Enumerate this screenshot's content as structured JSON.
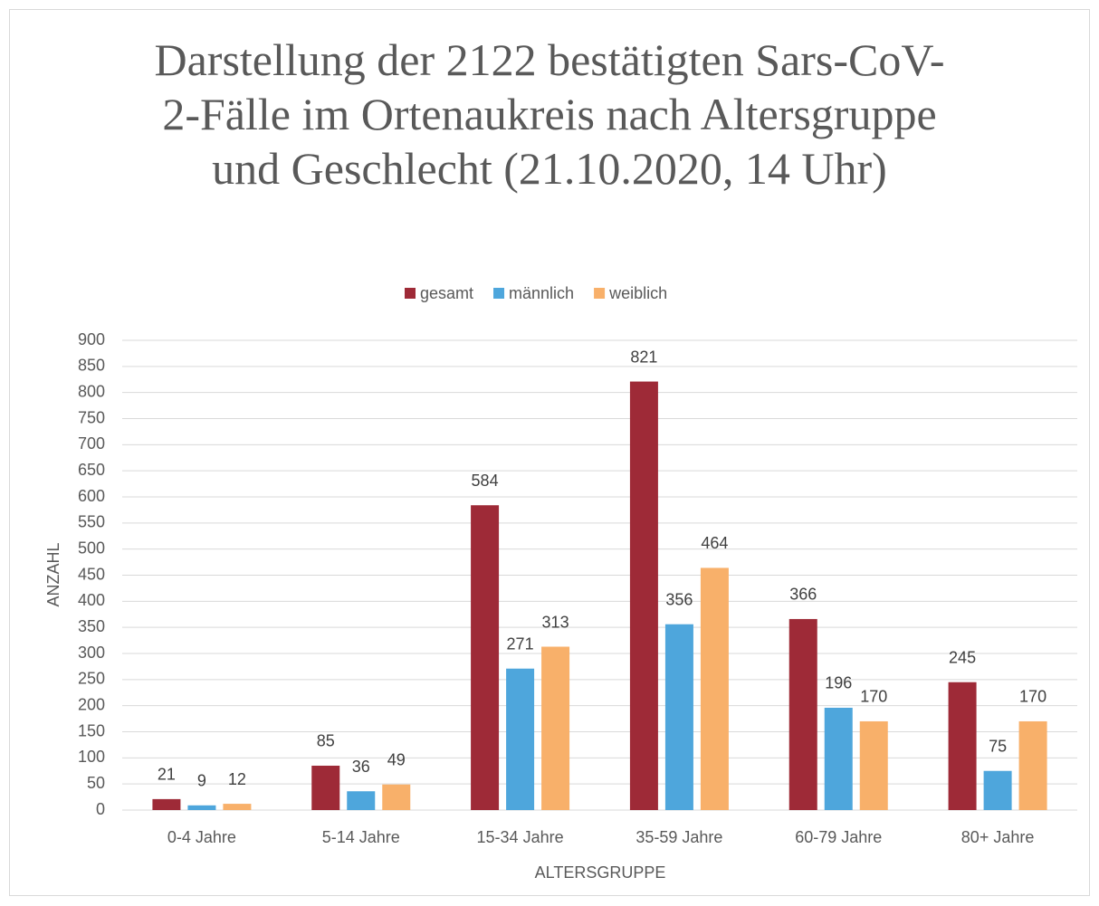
{
  "chart_data": {
    "type": "bar",
    "title": "Darstellung der 2122 bestätigten Sars-CoV-2-Fälle im Ortenaukreis nach Altersgruppe und Geschlecht (21.10.2020, 14 Uhr)",
    "x_label": "ALTERSGRUPPE",
    "y_label": "ANZAHL",
    "categories": [
      "0-4 Jahre",
      "5-14 Jahre",
      "15-34 Jahre",
      "35-59 Jahre",
      "60-79 Jahre",
      "80+ Jahre"
    ],
    "series": [
      {
        "name": "gesamt",
        "color": "#9e2a37",
        "values": [
          21,
          85,
          584,
          821,
          366,
          245
        ]
      },
      {
        "name": "männlich",
        "color": "#4ea6dc",
        "values": [
          9,
          36,
          271,
          356,
          196,
          75
        ]
      },
      {
        "name": "weiblich",
        "color": "#f8b06a",
        "values": [
          12,
          49,
          313,
          464,
          170,
          170
        ]
      }
    ],
    "ylim": [
      0,
      900
    ],
    "yticks": [
      0,
      50,
      100,
      150,
      200,
      250,
      300,
      350,
      400,
      450,
      500,
      550,
      600,
      650,
      700,
      750,
      800,
      850,
      900
    ],
    "grid": true,
    "legend": "top"
  }
}
